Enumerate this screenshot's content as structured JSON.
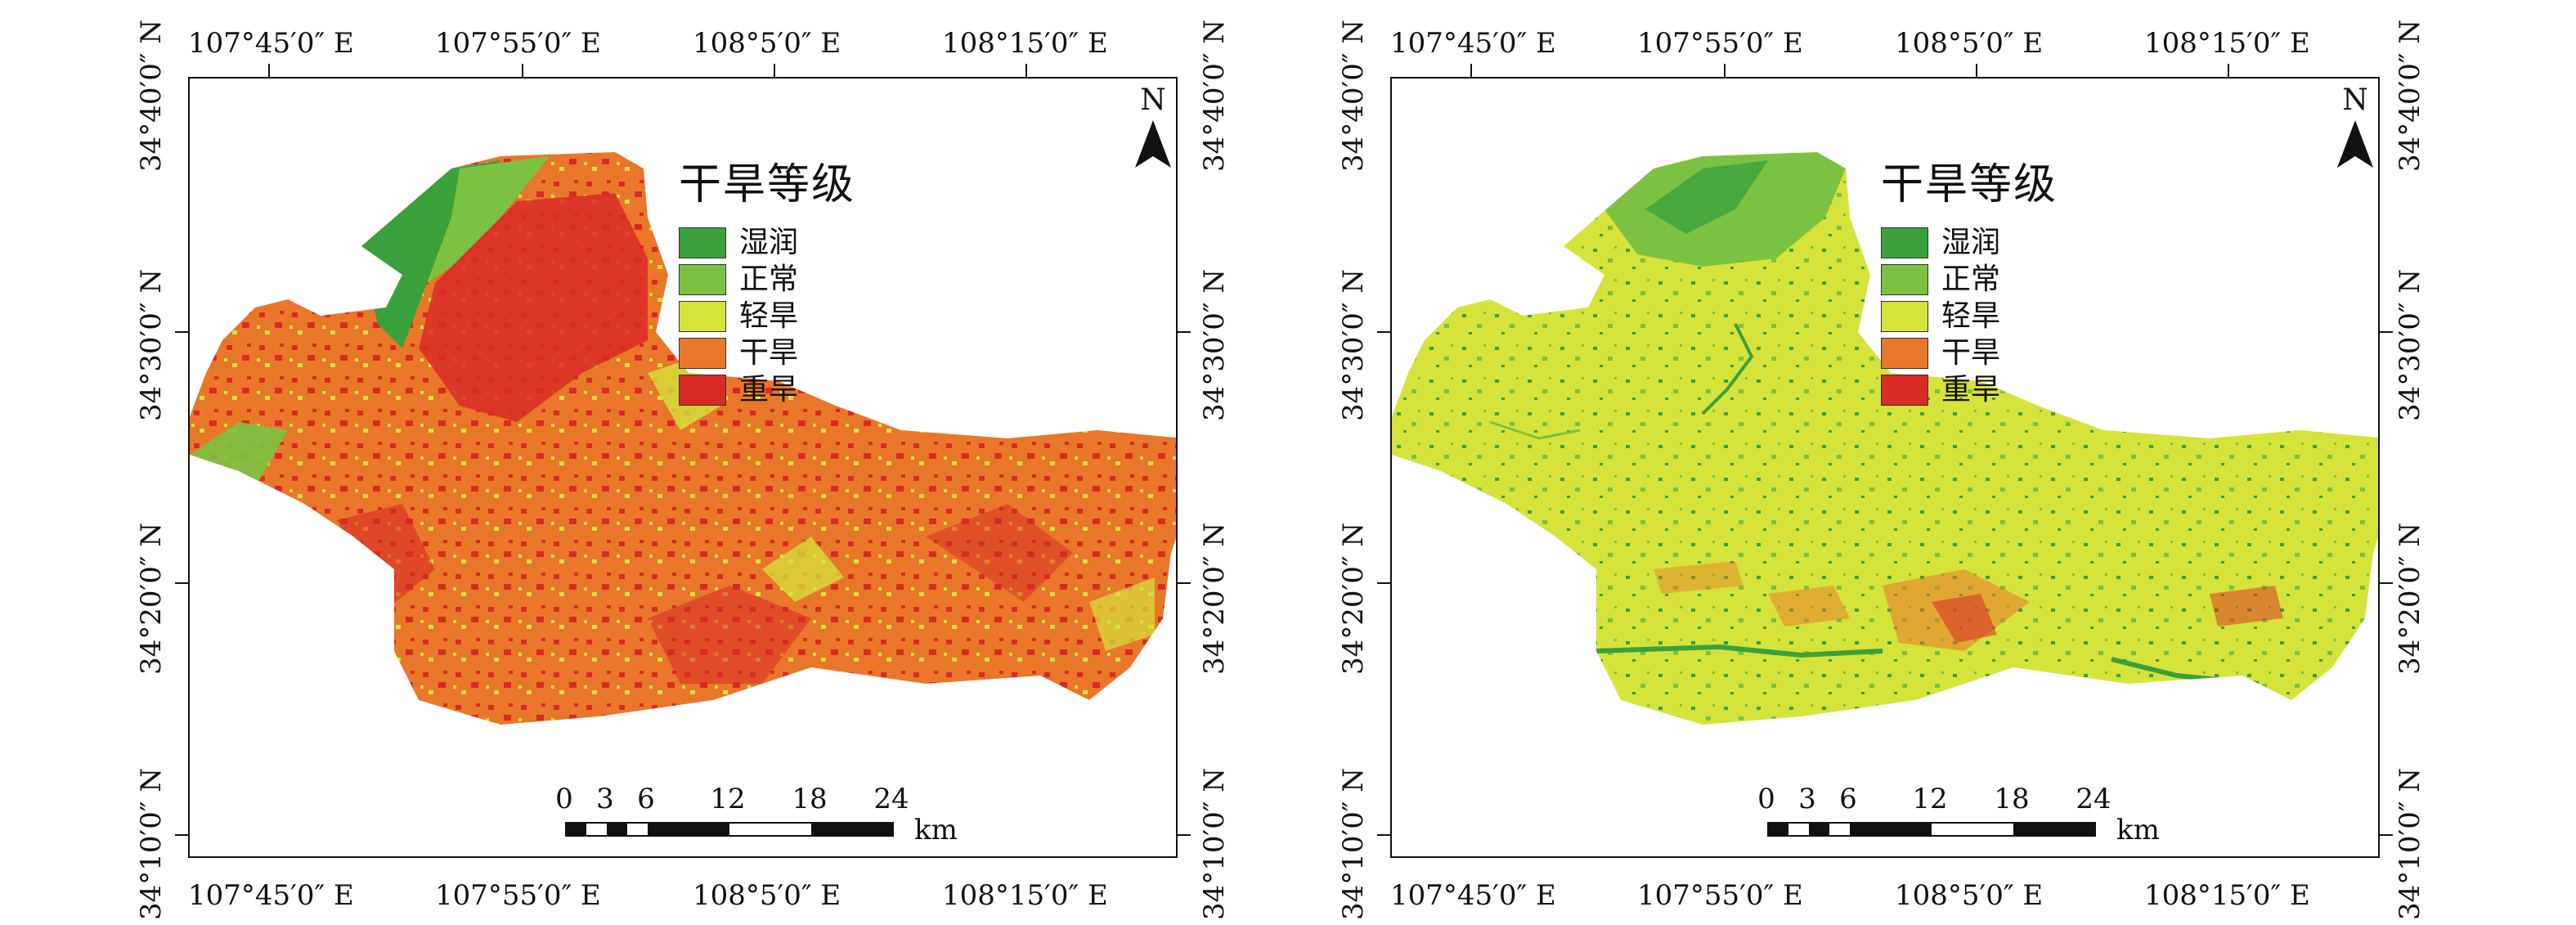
{
  "panels": [
    {
      "lon_labels": [
        "107°45′0″ E",
        "107°55′0″ E",
        "108°5′0″ E",
        "108°15′0″ E"
      ],
      "lat_labels": [
        "34°40′0″ N",
        "34°30′0″ N",
        "34°20′0″ N",
        "34°10′0″ N"
      ],
      "legend": {
        "title": "干旱等级",
        "items": [
          {
            "label": "湿润",
            "color": "#3aa13c"
          },
          {
            "label": "正常",
            "color": "#7cc242"
          },
          {
            "label": "轻旱",
            "color": "#d6e33a"
          },
          {
            "label": "干旱",
            "color": "#e9772a"
          },
          {
            "label": "重旱",
            "color": "#d92b26"
          }
        ]
      },
      "north_label": "N",
      "scale": {
        "ticks": [
          "0",
          "3",
          "6",
          "12",
          "18",
          "24"
        ],
        "unit": "km"
      }
    },
    {
      "lon_labels": [
        "107°45′0″ E",
        "107°55′0″ E",
        "108°5′0″ E",
        "108°15′0″ E"
      ],
      "lat_labels": [
        "34°40′0″ N",
        "34°30′0″ N",
        "34°20′0″ N",
        "34°10′0″ N"
      ],
      "legend": {
        "title": "干旱等级",
        "items": [
          {
            "label": "湿润",
            "color": "#3aa13c"
          },
          {
            "label": "正常",
            "color": "#7cc242"
          },
          {
            "label": "轻旱",
            "color": "#d6e33a"
          },
          {
            "label": "干旱",
            "color": "#e9772a"
          },
          {
            "label": "重旱",
            "color": "#d92b26"
          }
        ]
      },
      "north_label": "N",
      "scale": {
        "ticks": [
          "0",
          "3",
          "6",
          "12",
          "18",
          "24"
        ],
        "unit": "km"
      }
    }
  ]
}
